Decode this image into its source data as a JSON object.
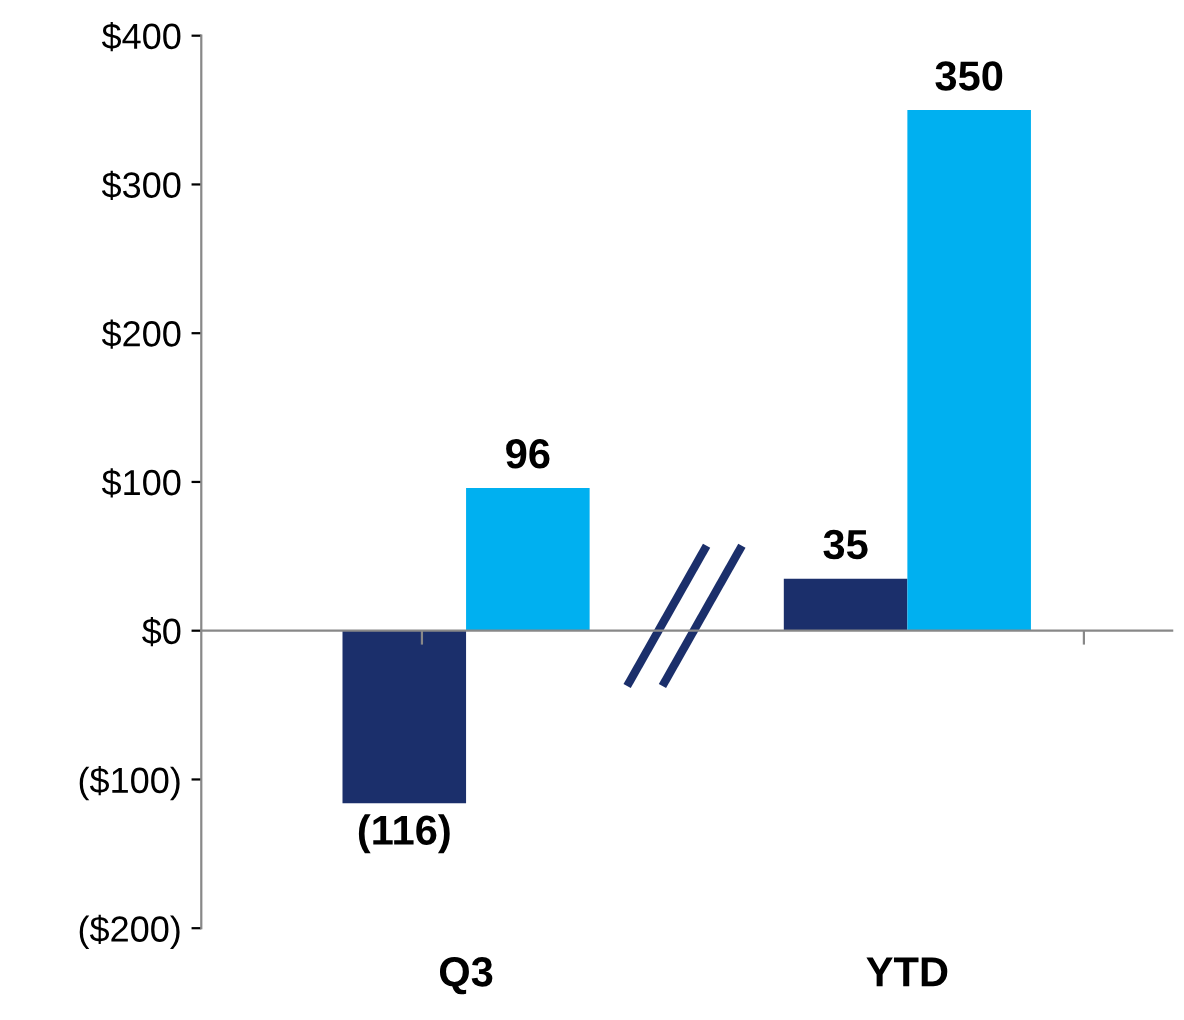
{
  "chart_data": {
    "type": "bar",
    "categories": [
      "Q3",
      "YTD"
    ],
    "series": [
      {
        "color": "#1b2f6b",
        "values": [
          -116,
          35
        ],
        "value_labels": [
          "(116)",
          "35"
        ]
      },
      {
        "color": "#00b0f0",
        "values": [
          96,
          350
        ],
        "value_labels": [
          "96",
          "350"
        ]
      }
    ],
    "ylim": [
      -200,
      400
    ],
    "yticks": [
      {
        "value": -200,
        "label": "($200)"
      },
      {
        "value": -100,
        "label": "($100)"
      },
      {
        "value": 0,
        "label": "$0"
      },
      {
        "value": 100,
        "label": "$100"
      },
      {
        "value": 200,
        "label": "$200"
      },
      {
        "value": 300,
        "label": "$300"
      },
      {
        "value": 400,
        "label": "$400"
      }
    ],
    "legend": false
  }
}
